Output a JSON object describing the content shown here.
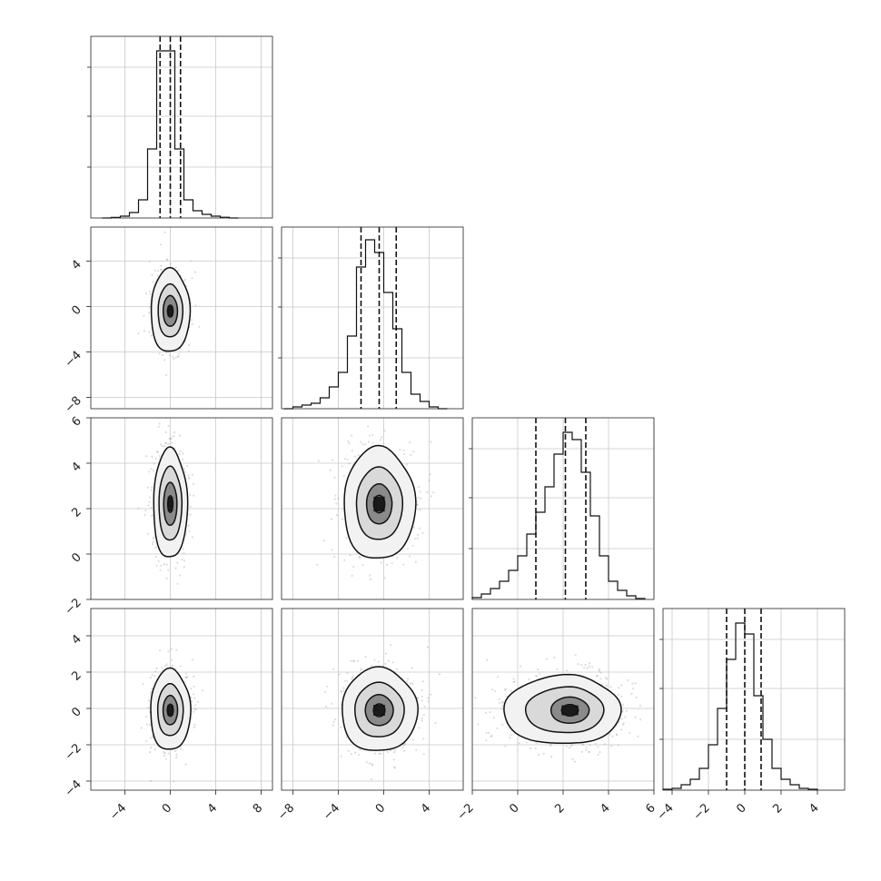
{
  "chart_data": {
    "type": "corner",
    "title": "",
    "grid": true,
    "params": [
      {
        "range": [
          -7,
          9
        ],
        "ticks": [
          -4,
          0,
          4,
          8
        ],
        "tick_labels": [
          "−4",
          "0",
          "4",
          "8"
        ],
        "quantiles": [
          -0.9,
          0.0,
          0.9
        ],
        "mean": 0.0,
        "sd": 0.75,
        "hist_ymax": 1.0,
        "hist_edges": [
          -6,
          -5.2,
          -4.4,
          -3.6,
          -2.8,
          -2.0,
          -1.2,
          -0.4,
          0.4,
          1.2,
          2.0,
          2.8,
          3.6,
          4.4,
          5.2,
          6.0
        ],
        "hist_counts": [
          0,
          0.003,
          0.01,
          0.03,
          0.1,
          0.38,
          0.92,
          0.92,
          0.38,
          0.1,
          0.04,
          0.02,
          0.01,
          0.004,
          0
        ]
      },
      {
        "range": [
          -9,
          7
        ],
        "ticks": [
          -8,
          -4,
          0,
          4
        ],
        "tick_labels": [
          "−8",
          "−4",
          "0",
          "4"
        ],
        "quantiles": [
          -2.0,
          -0.4,
          1.1
        ],
        "mean": -0.4,
        "sd": 1.5,
        "hist_ymax": 1.0,
        "hist_edges": [
          -8.8,
          -8,
          -7.2,
          -6.4,
          -5.6,
          -4.8,
          -4,
          -3.2,
          -2.4,
          -1.6,
          -0.8,
          0,
          0.8,
          1.6,
          2.4,
          3.2,
          4.0,
          4.8,
          5.6
        ],
        "hist_counts": [
          0,
          0.01,
          0.02,
          0.03,
          0.06,
          0.12,
          0.2,
          0.4,
          0.78,
          0.93,
          0.86,
          0.64,
          0.44,
          0.2,
          0.08,
          0.04,
          0.01,
          0
        ]
      },
      {
        "range": [
          -2,
          6
        ],
        "ticks": [
          -2,
          0,
          2,
          4,
          6
        ],
        "tick_labels": [
          "−2",
          "0",
          "2",
          "4",
          "6"
        ],
        "quantiles": [
          0.8,
          2.1,
          3.0
        ],
        "mean": 2.1,
        "sd": 1.1,
        "hist_ymax": 1.0,
        "hist_edges": [
          -2,
          -1.6,
          -1.2,
          -0.8,
          -0.4,
          0,
          0.4,
          0.8,
          1.2,
          1.6,
          2.0,
          2.4,
          2.8,
          3.2,
          3.6,
          4.0,
          4.4,
          4.8,
          5.2,
          5.6
        ],
        "hist_counts": [
          0.01,
          0.03,
          0.06,
          0.1,
          0.16,
          0.24,
          0.36,
          0.48,
          0.62,
          0.8,
          0.92,
          0.88,
          0.7,
          0.46,
          0.24,
          0.1,
          0.05,
          0.02,
          0.005
        ]
      },
      {
        "range": [
          -4.5,
          5.5
        ],
        "ticks": [
          -4,
          -2,
          0,
          2,
          4
        ],
        "tick_labels": [
          "−4",
          "−2",
          "0",
          "2",
          "4"
        ],
        "quantiles": [
          -1.0,
          0.0,
          0.9
        ],
        "mean": -0.1,
        "sd": 0.95,
        "hist_ymax": 1.0,
        "hist_edges": [
          -4.5,
          -4,
          -3.5,
          -3,
          -2.5,
          -2,
          -1.5,
          -1,
          -0.5,
          0,
          0.5,
          1,
          1.5,
          2,
          2.5,
          3,
          3.5,
          4
        ],
        "hist_counts": [
          0.005,
          0.01,
          0.03,
          0.06,
          0.12,
          0.25,
          0.45,
          0.72,
          0.92,
          0.86,
          0.52,
          0.28,
          0.12,
          0.06,
          0.03,
          0.01,
          0.005
        ]
      }
    ],
    "pairs": [
      {
        "x": 0,
        "y": 1,
        "center": [
          0.0,
          -0.4
        ],
        "sd_x": 0.7,
        "sd_y": 1.5,
        "rho": 0.0,
        "level_scales": [
          0.9,
          1.55,
          2.45
        ],
        "clip": 0
      },
      {
        "x": 0,
        "y": 2,
        "center": [
          0.0,
          2.2
        ],
        "sd_x": 0.65,
        "sd_y": 1.05,
        "rho": 0.0,
        "level_scales": [
          0.9,
          1.55,
          2.3
        ],
        "clip": 0
      },
      {
        "x": 1,
        "y": 2,
        "center": [
          -0.4,
          2.2
        ],
        "sd_x": 1.4,
        "sd_y": 1.1,
        "rho": 0.0,
        "level_scales": [
          0.8,
          1.45,
          2.25
        ],
        "clip": 0
      },
      {
        "x": 0,
        "y": 3,
        "center": [
          0.0,
          -0.1
        ],
        "sd_x": 0.75,
        "sd_y": 0.95,
        "rho": 0.0,
        "level_scales": [
          0.85,
          1.5,
          2.35
        ],
        "clip": 0
      },
      {
        "x": 1,
        "y": 3,
        "center": [
          -0.4,
          -0.1
        ],
        "sd_x": 1.45,
        "sd_y": 1.0,
        "rho": 0.0,
        "level_scales": [
          0.85,
          1.5,
          2.3
        ],
        "clip": 0
      },
      {
        "x": 2,
        "y": 3,
        "center": [
          2.3,
          -0.1
        ],
        "sd_x": 1.05,
        "sd_y": 0.9,
        "rho": 0.0,
        "level_scales": [
          0.8,
          1.4,
          2.1
        ],
        "clip": 0,
        "skew_left": true
      }
    ]
  }
}
